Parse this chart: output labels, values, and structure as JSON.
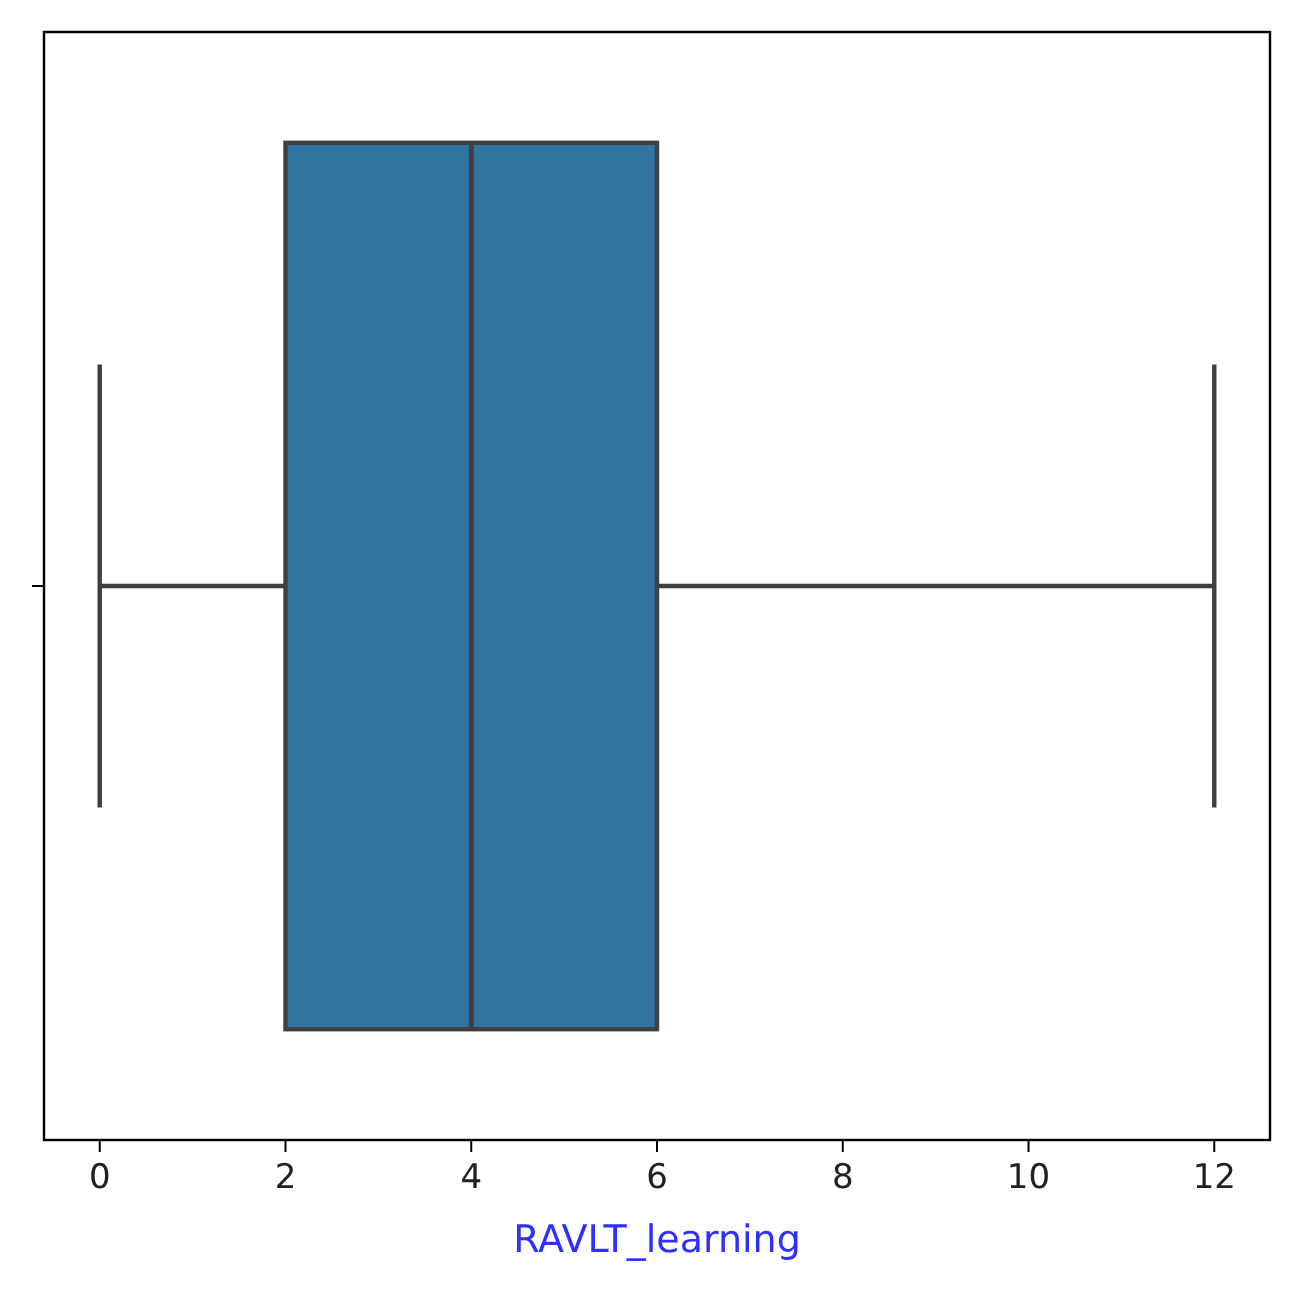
{
  "chart_data": {
    "type": "box",
    "orientation": "horizontal",
    "xlabel": "RAVLT_learning",
    "categories": [
      null
    ],
    "color": "#3274a1",
    "boxes": [
      {
        "low": 0,
        "q1": 2,
        "median": 4,
        "q3": 6,
        "high": 12
      }
    ],
    "xlim": [
      -0.6,
      12.6
    ],
    "xticks": [
      0,
      2,
      4,
      6,
      8,
      10,
      12
    ],
    "grid": false
  }
}
